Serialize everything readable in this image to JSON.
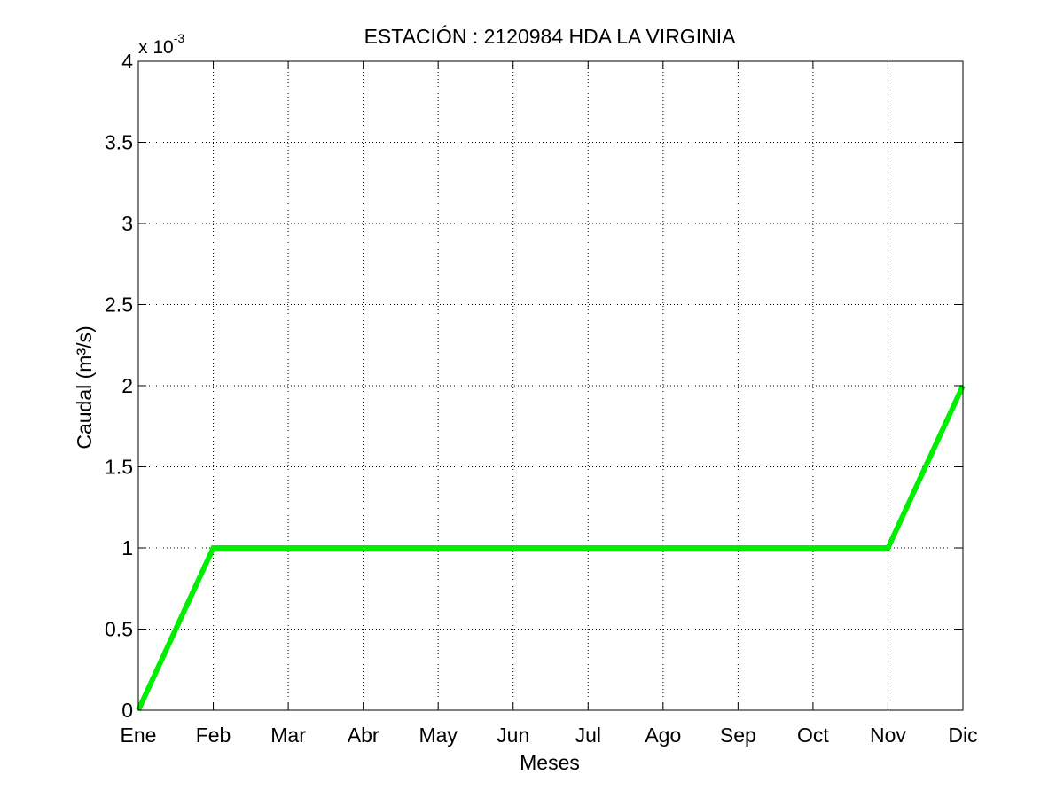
{
  "chart_data": {
    "type": "line",
    "title": "ESTACIÓN :  2120984  HDA LA VIRGINIA",
    "xlabel": "Meses",
    "ylabel": "Caudal (m³/s)",
    "y_multiplier_base": "x 10",
    "y_multiplier_exponent": "-3",
    "categories": [
      "Ene",
      "Feb",
      "Mar",
      "Abr",
      "May",
      "Jun",
      "Jul",
      "Ago",
      "Sep",
      "Oct",
      "Nov",
      "Dic"
    ],
    "ylim": [
      0,
      4
    ],
    "y_ticks": [
      0,
      0.5,
      1,
      1.5,
      2,
      2.5,
      3,
      3.5,
      4
    ],
    "y_tick_labels": [
      "0",
      "0.5",
      "1",
      "1.5",
      "2",
      "2.5",
      "3",
      "3.5",
      "4"
    ],
    "grid": true,
    "series": [
      {
        "values": [
          0,
          1,
          1,
          1,
          1,
          1,
          1,
          1,
          1,
          1,
          1,
          2
        ],
        "color": "#00ee00"
      }
    ]
  }
}
